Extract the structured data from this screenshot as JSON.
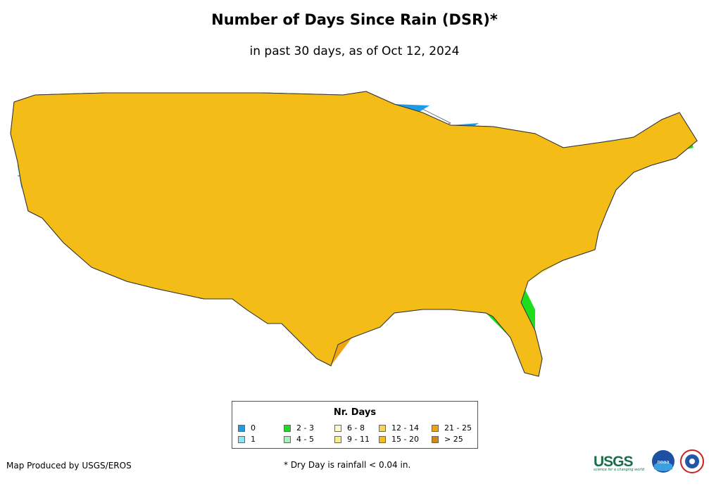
{
  "header": {
    "title": "Number of Days Since Rain (DSR)*",
    "subtitle": "in past 30 days, as of Oct 12, 2024"
  },
  "legend": {
    "title": "Nr. Days",
    "items": [
      {
        "label": "0",
        "color": "#1e9be8"
      },
      {
        "label": "1",
        "color": "#8fe3f2"
      },
      {
        "label": "2 - 3",
        "color": "#1edc1e"
      },
      {
        "label": "4 - 5",
        "color": "#a7f0bf"
      },
      {
        "label": "6 - 8",
        "color": "#fbfbcf"
      },
      {
        "label": "9 - 11",
        "color": "#f6ee86"
      },
      {
        "label": "12 - 14",
        "color": "#f3d65d"
      },
      {
        "label": "15 - 20",
        "color": "#f3bc16"
      },
      {
        "label": "21 - 25",
        "color": "#efa313"
      },
      {
        "label": "> 25",
        "color": "#d08912"
      }
    ]
  },
  "footer": {
    "credit": "Map Produced by USGS/EROS",
    "note": "* Dry Day is rainfall < 0.04 in."
  },
  "logos": {
    "usgs_text": "USGS",
    "usgs_tagline": "science for a changing world",
    "noaa_text": "noaa"
  }
}
